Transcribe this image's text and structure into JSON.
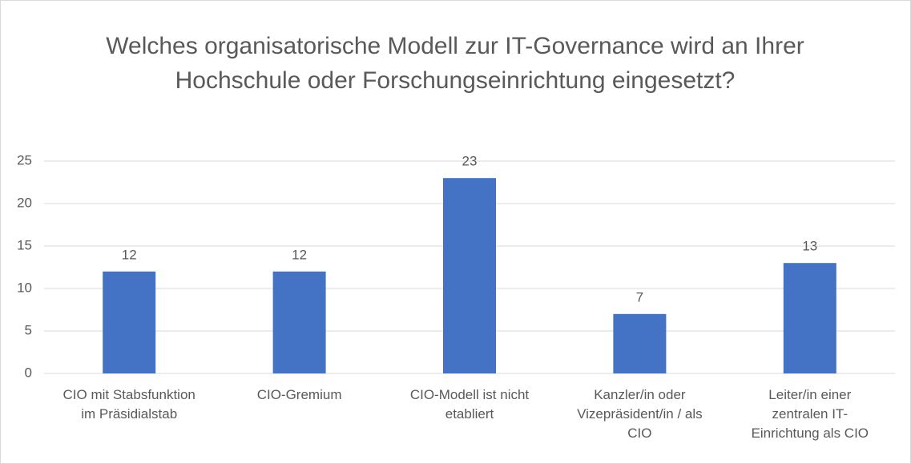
{
  "chart_data": {
    "type": "bar",
    "title": "Welches organisatorische Modell zur IT-Governance wird an Ihrer Hochschule oder Forschungseinrichtung eingesetzt?",
    "categories": [
      "CIO mit Stabsfunktion im Präsidialstab",
      "CIO-Gremium",
      "CIO-Modell ist nicht etabliert",
      "Kanzler/in oder Vizepräsident/in / als CIO",
      "Leiter/in einer zentralen IT-Einrichtung als CIO"
    ],
    "values": [
      12,
      12,
      23,
      7,
      13
    ],
    "color": "#4472c4",
    "ylim": [
      0,
      25
    ],
    "yticks": [
      0,
      5,
      10,
      15,
      20,
      25
    ],
    "grid": true
  }
}
